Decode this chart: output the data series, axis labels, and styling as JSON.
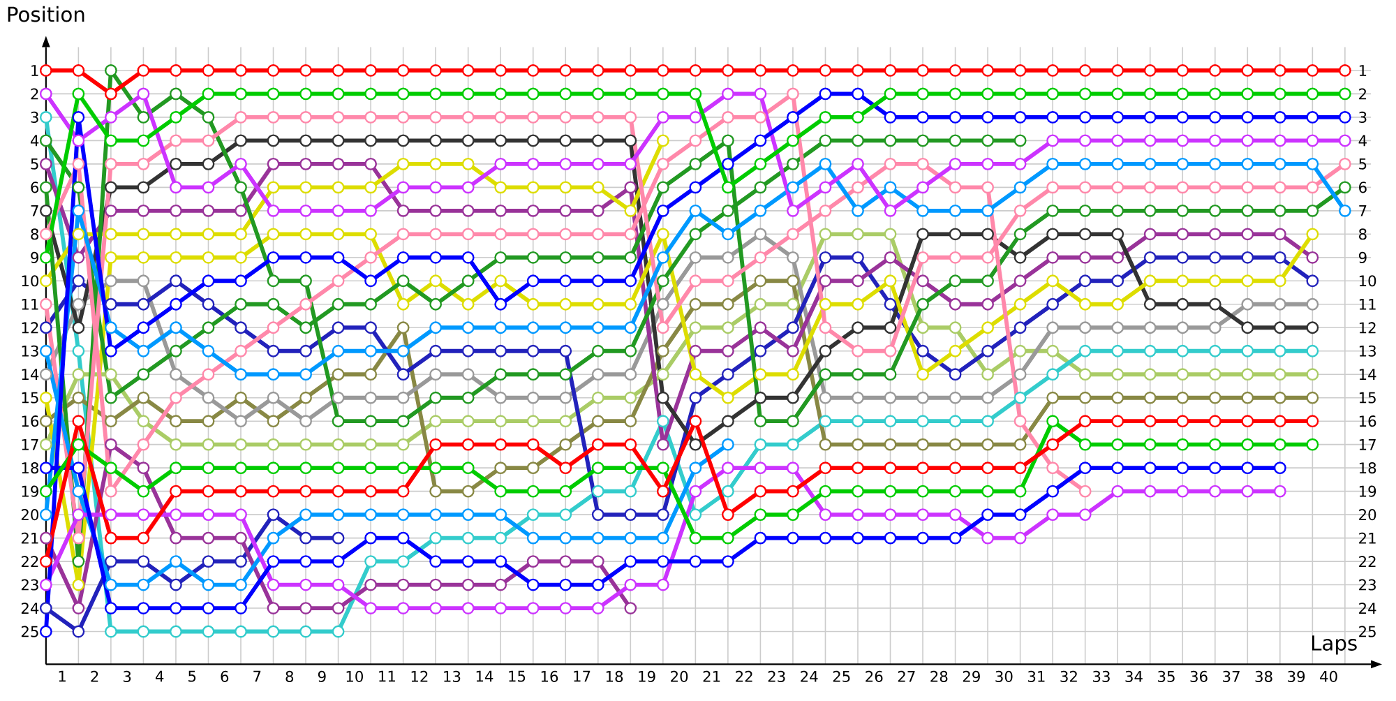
{
  "chart_data": {
    "type": "line",
    "xlabel": "Laps",
    "ylabel": "Position",
    "x": [
      0,
      1,
      2,
      3,
      4,
      5,
      6,
      7,
      8,
      9,
      10,
      11,
      12,
      13,
      14,
      15,
      16,
      17,
      18,
      19,
      20,
      21,
      22,
      23,
      24,
      25,
      26,
      27,
      28,
      29,
      30,
      31,
      32,
      33,
      34,
      35,
      36,
      37,
      38,
      39,
      40
    ],
    "xlim": [
      0,
      40.8
    ],
    "xticks": [
      {
        "value": 0.5,
        "label": "1"
      },
      {
        "value": 1.5,
        "label": "2"
      },
      {
        "value": 2.5,
        "label": "3"
      },
      {
        "value": 3.5,
        "label": "4"
      },
      {
        "value": 4.5,
        "label": "5"
      },
      {
        "value": 5.5,
        "label": "6"
      },
      {
        "value": 6.5,
        "label": "7"
      },
      {
        "value": 7.5,
        "label": "8"
      },
      {
        "value": 8.5,
        "label": "9"
      },
      {
        "value": 9.5,
        "label": "10"
      },
      {
        "value": 10.5,
        "label": "11"
      },
      {
        "value": 11.5,
        "label": "12"
      },
      {
        "value": 12.5,
        "label": "13"
      },
      {
        "value": 13.5,
        "label": "14"
      },
      {
        "value": 14.5,
        "label": "15"
      },
      {
        "value": 15.5,
        "label": "16"
      },
      {
        "value": 16.5,
        "label": "17"
      },
      {
        "value": 17.5,
        "label": "18"
      },
      {
        "value": 18.5,
        "label": "19"
      },
      {
        "value": 19.5,
        "label": "20"
      },
      {
        "value": 20.5,
        "label": "21"
      },
      {
        "value": 21.5,
        "label": "22"
      },
      {
        "value": 22.5,
        "label": "23"
      },
      {
        "value": 23.5,
        "label": "24"
      },
      {
        "value": 24.5,
        "label": "25"
      },
      {
        "value": 25.5,
        "label": "26"
      },
      {
        "value": 26.5,
        "label": "27"
      },
      {
        "value": 27.5,
        "label": "28"
      },
      {
        "value": 28.5,
        "label": "29"
      },
      {
        "value": 29.5,
        "label": "30"
      },
      {
        "value": 30.5,
        "label": "31"
      },
      {
        "value": 31.5,
        "label": "32"
      },
      {
        "value": 32.5,
        "label": "33"
      },
      {
        "value": 33.5,
        "label": "34"
      },
      {
        "value": 34.5,
        "label": "35"
      },
      {
        "value": 35.5,
        "label": "36"
      },
      {
        "value": 36.5,
        "label": "37"
      },
      {
        "value": 37.5,
        "label": "38"
      },
      {
        "value": 38.5,
        "label": "39"
      },
      {
        "value": 39.5,
        "label": "40"
      }
    ],
    "ylim": [
      26.4,
      0
    ],
    "yticks": [
      1,
      2,
      3,
      4,
      5,
      6,
      7,
      8,
      9,
      10,
      11,
      12,
      13,
      14,
      15,
      16,
      17,
      18,
      19,
      20,
      21,
      22,
      23,
      24,
      25
    ],
    "y2lim": [
      26.4,
      0
    ],
    "y2ticks": [
      1,
      2,
      3,
      4,
      5,
      6,
      7,
      8,
      9,
      10,
      11,
      12,
      13,
      14,
      15,
      16,
      17,
      18,
      19,
      20,
      21,
      22,
      23,
      24,
      25
    ],
    "grid": true,
    "marker": "circle",
    "line_style": "solid",
    "series": [
      {
        "color": "#aacc66",
        "values": [
          17,
          14,
          14,
          16,
          17,
          17,
          17,
          17,
          17,
          17,
          17,
          17,
          16,
          16,
          16,
          16,
          16,
          15,
          15,
          14,
          12,
          12,
          11,
          11,
          8,
          8,
          8,
          12,
          12,
          14,
          13,
          13,
          14,
          14,
          14,
          14,
          14,
          14,
          14,
          14,
          null
        ]
      },
      {
        "color": "#33cccc",
        "values": [
          3,
          13,
          25,
          25,
          25,
          25,
          25,
          25,
          25,
          25,
          22,
          22,
          21,
          21,
          21,
          20,
          20,
          19,
          19,
          16,
          20,
          19,
          17,
          17,
          16,
          16,
          16,
          16,
          16,
          16,
          15,
          14,
          13,
          13,
          13,
          13,
          13,
          13,
          13,
          13,
          null
        ]
      },
      {
        "color": "#888844",
        "values": [
          16,
          15,
          16,
          15,
          16,
          16,
          15,
          16,
          15,
          14,
          14,
          12,
          19,
          19,
          18,
          18,
          17,
          16,
          16,
          13,
          11,
          11,
          10,
          10,
          17,
          17,
          17,
          17,
          17,
          17,
          17,
          15,
          15,
          15,
          15,
          15,
          15,
          15,
          15,
          15,
          null
        ]
      },
      {
        "color": "#999999",
        "values": [
          14,
          11,
          10,
          10,
          14,
          15,
          16,
          15,
          16,
          15,
          15,
          15,
          14,
          14,
          15,
          15,
          15,
          14,
          14,
          11,
          9,
          9,
          8,
          9,
          15,
          15,
          15,
          15,
          15,
          15,
          14,
          12,
          12,
          12,
          12,
          12,
          12,
          11,
          11,
          11,
          null
        ]
      },
      {
        "color": "#2222bb",
        "values": [
          24,
          25,
          22,
          22,
          23,
          22,
          22,
          20,
          21,
          21,
          null,
          null,
          null,
          null,
          null,
          null,
          null,
          null,
          null,
          null,
          null,
          null,
          null,
          null,
          null,
          null,
          null,
          null,
          null,
          null,
          null,
          null,
          null,
          null,
          null,
          null,
          null,
          null,
          null,
          null,
          null
        ]
      },
      {
        "color": "#2222bb",
        "values": [
          12,
          10,
          11,
          11,
          10,
          11,
          12,
          13,
          13,
          12,
          12,
          14,
          13,
          13,
          13,
          13,
          13,
          20,
          20,
          20,
          15,
          14,
          13,
          12,
          9,
          9,
          11,
          13,
          14,
          13,
          12,
          11,
          10,
          10,
          9,
          9,
          9,
          9,
          9,
          10,
          null
        ]
      },
      {
        "color": "#993399",
        "values": [
          21,
          24,
          17,
          18,
          21,
          21,
          21,
          24,
          24,
          24,
          23,
          23,
          23,
          23,
          23,
          22,
          22,
          22,
          24,
          null,
          null,
          null,
          null,
          null,
          null,
          null,
          null,
          null,
          null,
          null,
          null,
          null,
          null,
          null,
          null,
          null,
          null,
          null,
          null,
          null,
          null
        ]
      },
      {
        "color": "#993399",
        "values": [
          5,
          9,
          7,
          7,
          7,
          7,
          7,
          5,
          5,
          5,
          5,
          7,
          7,
          7,
          7,
          7,
          7,
          7,
          6,
          17,
          13,
          13,
          12,
          13,
          10,
          10,
          9,
          10,
          11,
          11,
          10,
          9,
          9,
          9,
          8,
          8,
          8,
          8,
          8,
          9,
          null
        ]
      },
      {
        "color": "#333333",
        "values": [
          7,
          12,
          6,
          6,
          5,
          5,
          4,
          4,
          4,
          4,
          4,
          4,
          4,
          4,
          4,
          4,
          4,
          4,
          4,
          15,
          17,
          16,
          15,
          15,
          13,
          12,
          12,
          8,
          8,
          8,
          9,
          8,
          8,
          8,
          11,
          11,
          11,
          12,
          12,
          12,
          null
        ]
      },
      {
        "color": "#dddd00",
        "values": [
          10,
          8,
          8,
          8,
          8,
          8,
          8,
          6,
          6,
          6,
          6,
          5,
          5,
          5,
          6,
          6,
          6,
          6,
          7,
          4,
          null,
          null,
          null,
          null,
          null,
          null,
          null,
          null,
          null,
          null,
          null,
          null,
          null,
          null,
          null,
          null,
          null,
          null,
          null,
          null,
          null
        ]
      },
      {
        "color": "#dddd00",
        "values": [
          15,
          23,
          9,
          9,
          9,
          9,
          9,
          8,
          8,
          8,
          8,
          11,
          10,
          11,
          10,
          11,
          11,
          11,
          11,
          8,
          14,
          15,
          14,
          14,
          11,
          11,
          10,
          14,
          13,
          12,
          11,
          10,
          11,
          11,
          10,
          10,
          10,
          10,
          10,
          8,
          null
        ]
      },
      {
        "color": "#229922",
        "values": [
          6,
          22,
          1,
          3,
          2,
          3,
          6,
          10,
          10,
          16,
          16,
          16,
          15,
          15,
          14,
          14,
          14,
          13,
          13,
          10,
          8,
          7,
          6,
          5,
          4,
          4,
          4,
          4,
          4,
          4,
          4,
          null,
          null,
          null,
          null,
          null,
          null,
          null,
          null,
          null,
          null
        ]
      },
      {
        "color": "#229922",
        "values": [
          4,
          6,
          15,
          14,
          13,
          12,
          11,
          11,
          12,
          11,
          11,
          10,
          11,
          10,
          9,
          9,
          9,
          9,
          9,
          6,
          5,
          4,
          16,
          16,
          14,
          14,
          14,
          11,
          10,
          10,
          8,
          7,
          7,
          7,
          7,
          7,
          7,
          7,
          7,
          7,
          6
        ]
      },
      {
        "color": "#ff88aa",
        "values": [
          11,
          21,
          5,
          5,
          4,
          4,
          3,
          3,
          3,
          3,
          3,
          3,
          3,
          3,
          3,
          3,
          3,
          3,
          3,
          12,
          10,
          10,
          9,
          8,
          7,
          6,
          5,
          5,
          6,
          6,
          16,
          18,
          19,
          null,
          null,
          null,
          null,
          null,
          null,
          null,
          null
        ]
      },
      {
        "color": "#ff88aa",
        "values": [
          8,
          5,
          19,
          17,
          15,
          14,
          13,
          12,
          11,
          10,
          9,
          8,
          8,
          8,
          8,
          8,
          8,
          8,
          8,
          5,
          4,
          3,
          3,
          2,
          12,
          13,
          13,
          9,
          9,
          9,
          7,
          6,
          6,
          6,
          6,
          6,
          6,
          6,
          6,
          6,
          5
        ]
      },
      {
        "color": "#0099ff",
        "values": [
          13,
          19,
          23,
          23,
          22,
          23,
          23,
          21,
          20,
          20,
          20,
          20,
          20,
          20,
          20,
          21,
          21,
          21,
          21,
          21,
          18,
          17,
          null,
          null,
          null,
          null,
          null,
          null,
          null,
          null,
          null,
          null,
          null,
          null,
          null,
          null,
          null,
          null,
          null,
          null,
          null
        ]
      },
      {
        "color": "#0099ff",
        "values": [
          20,
          7,
          12,
          13,
          12,
          13,
          14,
          14,
          14,
          13,
          13,
          13,
          12,
          12,
          12,
          12,
          12,
          12,
          12,
          9,
          7,
          8,
          7,
          6,
          5,
          7,
          6,
          7,
          7,
          7,
          6,
          5,
          5,
          5,
          5,
          5,
          5,
          5,
          5,
          5,
          7
        ]
      },
      {
        "color": "#cc33ff",
        "values": [
          23,
          20,
          20,
          20,
          20,
          20,
          20,
          23,
          23,
          23,
          24,
          24,
          24,
          24,
          24,
          24,
          24,
          24,
          23,
          23,
          19,
          18,
          18,
          18,
          20,
          20,
          20,
          20,
          20,
          21,
          21,
          20,
          20,
          19,
          19,
          19,
          19,
          19,
          19,
          null,
          null
        ]
      },
      {
        "color": "#cc33ff",
        "values": [
          2,
          4,
          3,
          2,
          6,
          6,
          5,
          7,
          7,
          7,
          7,
          6,
          6,
          6,
          5,
          5,
          5,
          5,
          5,
          3,
          3,
          2,
          2,
          7,
          6,
          5,
          7,
          6,
          5,
          5,
          5,
          4,
          4,
          4,
          4,
          4,
          4,
          4,
          4,
          4,
          4
        ]
      },
      {
        "color": "#0000ff",
        "values": [
          18,
          18,
          24,
          24,
          24,
          24,
          24,
          22,
          22,
          22,
          21,
          21,
          22,
          22,
          22,
          23,
          23,
          23,
          22,
          22,
          22,
          22,
          21,
          21,
          21,
          21,
          21,
          21,
          21,
          20,
          20,
          19,
          18,
          18,
          18,
          18,
          18,
          18,
          18,
          null,
          null
        ]
      },
      {
        "color": "#0000ff",
        "values": [
          25,
          3,
          13,
          12,
          11,
          10,
          10,
          9,
          9,
          9,
          10,
          9,
          9,
          9,
          11,
          10,
          10,
          10,
          10,
          7,
          6,
          5,
          4,
          3,
          2,
          2,
          3,
          3,
          3,
          3,
          3,
          3,
          3,
          3,
          3,
          3,
          3,
          3,
          3,
          3,
          3
        ]
      },
      {
        "color": "#00cc00",
        "values": [
          19,
          17,
          18,
          19,
          18,
          18,
          18,
          18,
          18,
          18,
          18,
          18,
          18,
          18,
          19,
          19,
          19,
          18,
          18,
          18,
          21,
          21,
          20,
          20,
          19,
          19,
          19,
          19,
          19,
          19,
          19,
          16,
          17,
          17,
          17,
          17,
          17,
          17,
          17,
          17,
          null
        ]
      },
      {
        "color": "#00cc00",
        "values": [
          9,
          2,
          4,
          4,
          3,
          2,
          2,
          2,
          2,
          2,
          2,
          2,
          2,
          2,
          2,
          2,
          2,
          2,
          2,
          2,
          2,
          6,
          5,
          4,
          3,
          3,
          2,
          2,
          2,
          2,
          2,
          2,
          2,
          2,
          2,
          2,
          2,
          2,
          2,
          2,
          2
        ]
      },
      {
        "color": "#ff0000",
        "values": [
          22,
          16,
          21,
          21,
          19,
          19,
          19,
          19,
          19,
          19,
          19,
          19,
          17,
          17,
          17,
          17,
          18,
          17,
          17,
          19,
          16,
          20,
          19,
          19,
          18,
          18,
          18,
          18,
          18,
          18,
          18,
          17,
          16,
          16,
          16,
          16,
          16,
          16,
          16,
          16,
          null
        ]
      },
      {
        "color": "#ff0000",
        "values": [
          1,
          1,
          2,
          1,
          1,
          1,
          1,
          1,
          1,
          1,
          1,
          1,
          1,
          1,
          1,
          1,
          1,
          1,
          1,
          1,
          1,
          1,
          1,
          1,
          1,
          1,
          1,
          1,
          1,
          1,
          1,
          1,
          1,
          1,
          1,
          1,
          1,
          1,
          1,
          1,
          1
        ]
      }
    ]
  }
}
